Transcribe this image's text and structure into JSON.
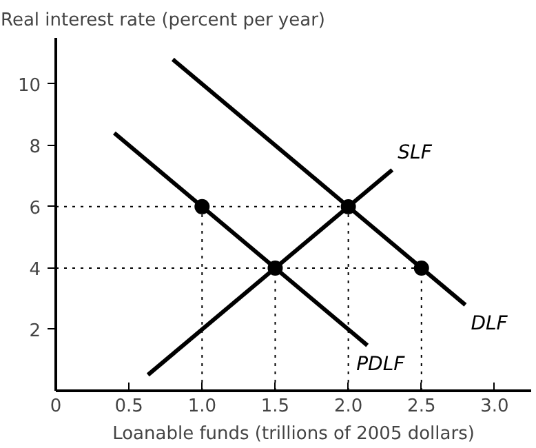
{
  "chart_data": {
    "type": "line",
    "ylabel": "Real interest rate (percent per year)",
    "xlabel": "Loanable funds (trillions of 2005 dollars)",
    "xlim": [
      0,
      3.25
    ],
    "ylim": [
      0,
      11.5
    ],
    "xticks": [
      {
        "value": 0,
        "label": "0"
      },
      0.5,
      {
        "value": 1,
        "label": "1.0"
      },
      1.5,
      {
        "value": 2,
        "label": "2.0"
      },
      2.5,
      {
        "value": 3,
        "label": "3.0"
      }
    ],
    "yticks": [
      2,
      4,
      6,
      8,
      10
    ],
    "grid": false,
    "series": [
      {
        "name": "DLF",
        "color": "#000000",
        "x": [
          0.8,
          2.8
        ],
        "values": [
          10.8,
          2.8
        ]
      },
      {
        "name": "PDLF",
        "color": "#000000",
        "x": [
          0.4,
          2.13
        ],
        "values": [
          8.4,
          1.48
        ]
      },
      {
        "name": "SLF",
        "color": "#000000",
        "x": [
          0.63,
          2.3
        ],
        "values": [
          0.52,
          7.2
        ]
      },
      {
        "color": "#000000",
        "x": [
          0,
          2
        ],
        "values": [
          6,
          6
        ],
        "line_style": "dotted"
      },
      {
        "color": "#000000",
        "x": [
          0,
          2.5
        ],
        "values": [
          4,
          4
        ],
        "line_style": "dotted"
      },
      {
        "color": "#000000",
        "x": [
          1,
          1
        ],
        "values": [
          0,
          6
        ],
        "line_style": "dotted"
      },
      {
        "color": "#000000",
        "x": [
          1.5,
          1.5
        ],
        "values": [
          0,
          4
        ],
        "line_style": "dotted"
      },
      {
        "color": "#000000",
        "x": [
          2,
          2
        ],
        "values": [
          0,
          6
        ],
        "line_style": "dotted"
      },
      {
        "color": "#000000",
        "x": [
          2.5,
          2.5
        ],
        "values": [
          0,
          4
        ],
        "line_style": "dotted"
      },
      {
        "type": "scatter",
        "color": "#000000",
        "x": [
          1,
          2,
          1.5,
          2.5
        ],
        "values": [
          6,
          6,
          4,
          4
        ],
        "marker": "circle"
      }
    ]
  }
}
